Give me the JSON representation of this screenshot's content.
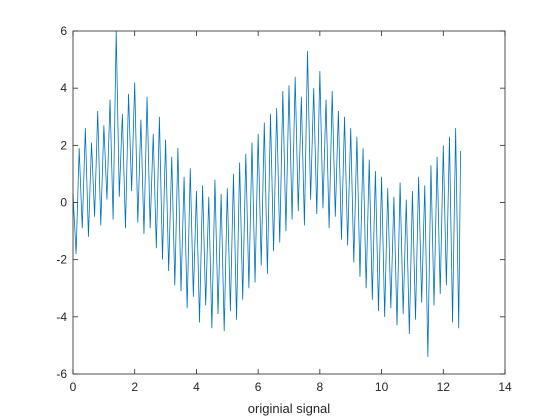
{
  "chart_data": {
    "type": "line",
    "xlabel": "originial signal",
    "x": [
      0,
      0.1,
      0.2,
      0.3,
      0.4,
      0.5,
      0.6,
      0.7,
      0.8,
      0.9,
      1,
      1.1,
      1.2,
      1.3,
      1.4,
      1.5,
      1.6,
      1.7,
      1.8,
      1.9,
      2,
      2.1,
      2.2,
      2.3,
      2.4,
      2.5,
      2.6,
      2.7,
      2.8,
      2.9,
      3,
      3.1,
      3.2,
      3.3,
      3.4,
      3.5,
      3.6,
      3.7,
      3.8,
      3.9,
      4,
      4.1,
      4.2,
      4.3,
      4.4,
      4.5,
      4.6,
      4.7,
      4.8,
      4.9,
      5,
      5.1,
      5.2,
      5.3,
      5.4,
      5.5,
      5.6,
      5.7,
      5.8,
      5.9,
      6,
      6.1,
      6.2,
      6.3,
      6.4,
      6.5,
      6.6,
      6.7,
      6.8,
      6.9,
      7,
      7.1,
      7.2,
      7.3,
      7.4,
      7.5,
      7.6,
      7.7,
      7.8,
      7.9,
      8,
      8.1,
      8.2,
      8.3,
      8.4,
      8.5,
      8.6,
      8.7,
      8.8,
      8.9,
      9,
      9.1,
      9.2,
      9.3,
      9.4,
      9.5,
      9.6,
      9.7,
      9.8,
      9.9,
      10,
      10.1,
      10.2,
      10.3,
      10.4,
      10.5,
      10.6,
      10.7,
      10.8,
      10.9,
      11,
      11.1,
      11.2,
      11.3,
      11.4,
      11.5,
      11.6,
      11.7,
      11.8,
      11.9,
      12,
      12.1,
      12.2,
      12.3,
      12.4,
      12.5,
      12.56
    ],
    "series": [
      {
        "color": "#0072bd",
        "values": [
          0.3,
          -1.8,
          1.9,
          -0.9,
          2.6,
          -1.2,
          2.1,
          -0.5,
          3.2,
          -0.8,
          2.7,
          0.1,
          3.6,
          -0.6,
          6.0,
          0.2,
          3.1,
          -0.9,
          3.8,
          0.4,
          4.2,
          -0.7,
          2.9,
          -1.1,
          3.7,
          -0.9,
          2.4,
          -1.6,
          3.0,
          -2.0,
          2.2,
          -2.4,
          1.6,
          -2.9,
          1.9,
          -3.1,
          0.9,
          -3.7,
          1.2,
          -3.3,
          0.4,
          -4.2,
          0.6,
          -3.6,
          0.2,
          -4.4,
          0.8,
          -3.9,
          0.3,
          -4.5,
          0.5,
          -3.8,
          1.0,
          -4.1,
          1.4,
          -3.4,
          1.7,
          -3.0,
          2.1,
          -2.8,
          2.4,
          -2.2,
          2.8,
          -2.5,
          3.1,
          -1.7,
          3.3,
          -1.4,
          3.9,
          -1.0,
          4.1,
          -0.6,
          4.4,
          -0.3,
          3.7,
          -0.8,
          5.3,
          0.1,
          4.0,
          -0.4,
          4.6,
          -0.2,
          3.6,
          -0.9,
          3.9,
          -0.5,
          3.2,
          -1.3,
          3.0,
          -1.5,
          2.6,
          -2.1,
          2.3,
          -2.6,
          1.9,
          -3.0,
          1.5,
          -3.4,
          1.1,
          -3.8,
          0.9,
          -4.0,
          0.5,
          -3.7,
          0.2,
          -4.3,
          0.7,
          -3.9,
          0.1,
          -4.6,
          0.4,
          -4.1,
          0.9,
          -3.5,
          0.6,
          -5.4,
          1.3,
          -3.6,
          1.6,
          -3.2,
          2.0,
          -2.9,
          2.3,
          -4.2,
          2.6,
          -4.4,
          1.8
        ]
      }
    ],
    "xlim": [
      0,
      14
    ],
    "xticks": [
      0,
      2,
      4,
      6,
      8,
      10,
      12,
      14
    ],
    "ylim": [
      -6,
      6
    ],
    "yticks": [
      -6,
      -4,
      -2,
      0,
      2,
      4,
      6
    ]
  }
}
